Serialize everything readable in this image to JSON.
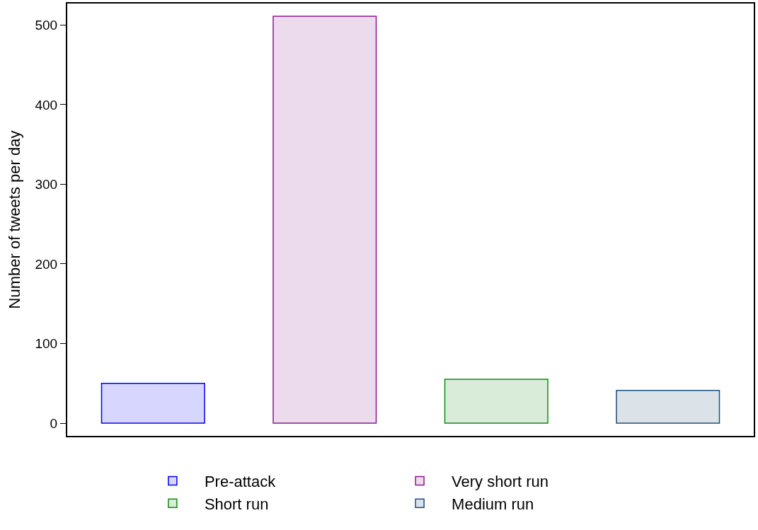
{
  "chart_data": {
    "type": "bar",
    "ylabel": "Number of tweets per day",
    "categories": [
      null,
      null,
      null,
      null
    ],
    "series": [
      {
        "name": "Pre-attack",
        "color": "#0000ff",
        "values": [
          50,
          null,
          null,
          null
        ]
      },
      {
        "name": "Very short run",
        "color": "#8b1a8e",
        "values": [
          null,
          511,
          null,
          null
        ]
      },
      {
        "name": "Short run",
        "color": "#128b12",
        "values": [
          null,
          null,
          55,
          null
        ]
      },
      {
        "name": "Medium run",
        "color": "#1f4e79",
        "values": [
          null,
          null,
          null,
          41
        ]
      }
    ],
    "ylim": [
      -16,
      527
    ],
    "yticks": [
      0,
      100,
      200,
      300,
      400,
      500
    ],
    "legend": "bottom",
    "tick_labels": "y"
  }
}
